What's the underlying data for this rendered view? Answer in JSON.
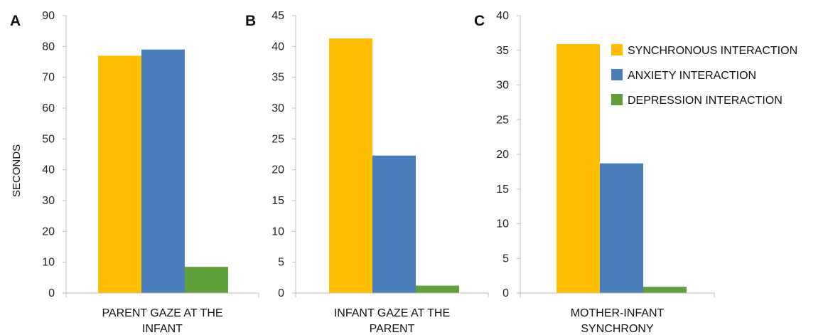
{
  "ylabel": "SECONDS",
  "legend": [
    {
      "label": "SYNCHRONOUS INTERACTION",
      "color": "#FFBF00"
    },
    {
      "label": "ANXIETY INTERACTION",
      "color": "#4A7EBB"
    },
    {
      "label": "DEPRESSION INTERACTION",
      "color": "#5FA03A"
    }
  ],
  "chart_data": [
    {
      "type": "bar",
      "panel": "A",
      "category_lines": [
        "PARENT GAZE AT THE",
        "INFANT"
      ],
      "ylim": [
        0,
        90
      ],
      "yticks": [
        "0",
        "10",
        "20",
        "30",
        "40",
        "50",
        "60",
        "70",
        "80",
        "90"
      ],
      "series": [
        {
          "name": "SYNCHRONOUS INTERACTION",
          "value": 77
        },
        {
          "name": "ANXIETY INTERACTION",
          "value": 79
        },
        {
          "name": "DEPRESSION INTERACTION",
          "value": 8.5
        }
      ]
    },
    {
      "type": "bar",
      "panel": "B",
      "category_lines": [
        "INFANT GAZE AT THE",
        "PARENT"
      ],
      "ylim": [
        0,
        45
      ],
      "yticks": [
        "0",
        "5",
        "10",
        "15",
        "20",
        "25",
        "30",
        "35",
        "40",
        "45"
      ],
      "series": [
        {
          "name": "SYNCHRONOUS INTERACTION",
          "value": 41.3
        },
        {
          "name": "ANXIETY INTERACTION",
          "value": 22.3
        },
        {
          "name": "DEPRESSION INTERACTION",
          "value": 1.2
        }
      ]
    },
    {
      "type": "bar",
      "panel": "C",
      "category_lines": [
        "MOTHER-INFANT",
        "SYNCHRONY"
      ],
      "ylim": [
        0,
        40
      ],
      "yticks": [
        "0",
        "5",
        "10",
        "15",
        "20",
        "25",
        "30",
        "35",
        "40"
      ],
      "series": [
        {
          "name": "SYNCHRONOUS INTERACTION",
          "value": 35.9
        },
        {
          "name": "ANXIETY INTERACTION",
          "value": 18.7
        },
        {
          "name": "DEPRESSION INTERACTION",
          "value": 0.9
        }
      ]
    }
  ]
}
